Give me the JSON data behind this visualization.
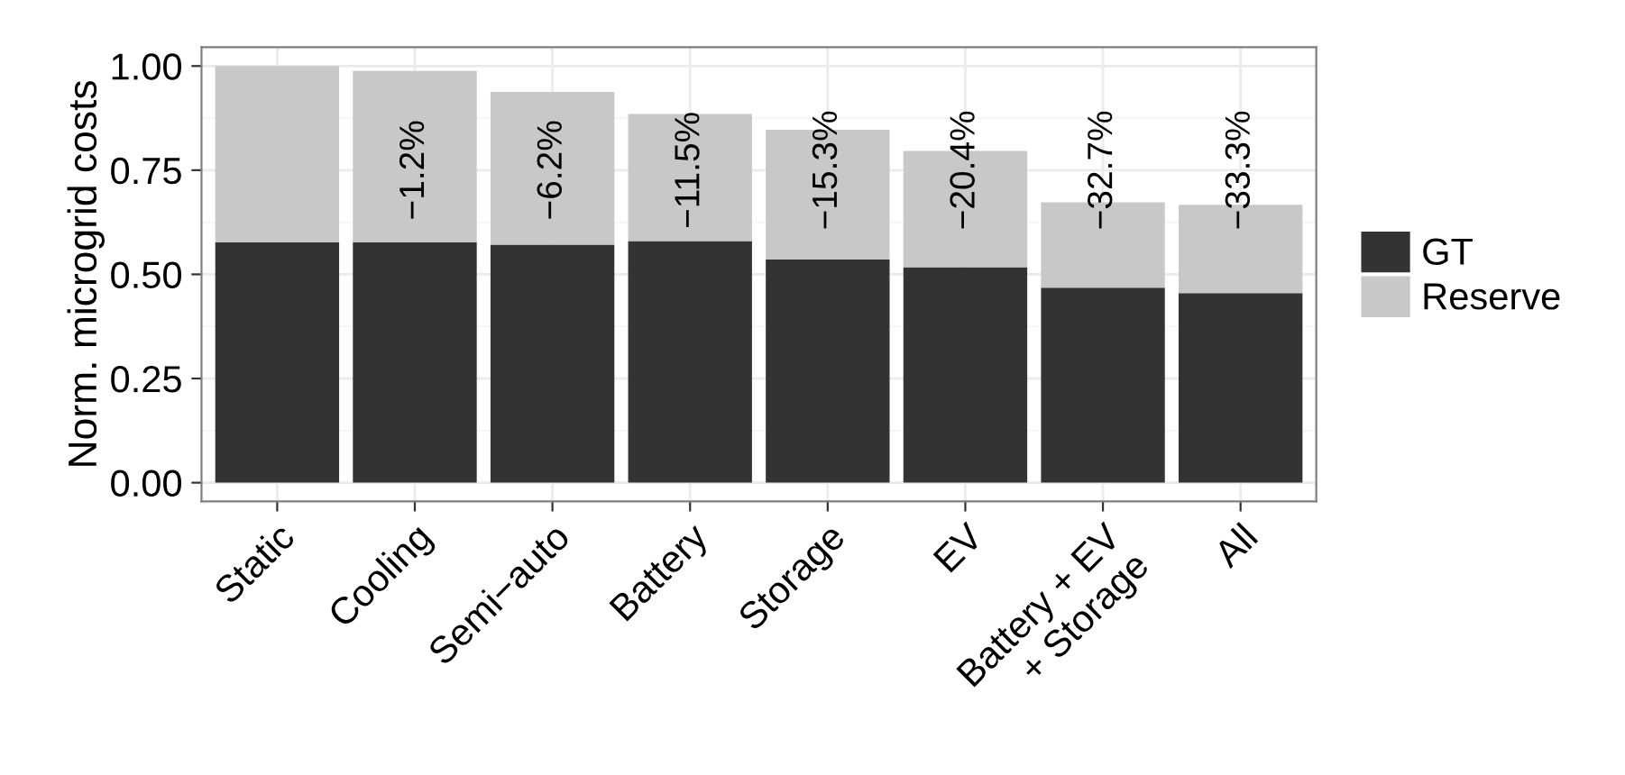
{
  "chart_data": {
    "type": "bar",
    "stacked": true,
    "ylabel": "Norm. microgrid costs",
    "categories": [
      "Static",
      "Cooling",
      "Semi−auto",
      "Battery",
      "Storage",
      "EV",
      "Battery + EV\n+ Storage",
      "All"
    ],
    "series": [
      {
        "name": "GT",
        "color": "#333333",
        "values": [
          0.577,
          0.577,
          0.571,
          0.58,
          0.536,
          0.517,
          0.468,
          0.455
        ]
      },
      {
        "name": "Reserve",
        "color": "#c8c8c8",
        "values": [
          0.423,
          0.411,
          0.367,
          0.305,
          0.311,
          0.279,
          0.205,
          0.212
        ]
      }
    ],
    "ylim": [
      -0.045,
      1.045
    ],
    "yticks": [
      {
        "value": 0,
        "label": "0.00"
      },
      {
        "value": 0.25,
        "label": "0.25"
      },
      {
        "value": 0.5,
        "label": "0.50"
      },
      {
        "value": 0.75,
        "label": "0.75"
      },
      {
        "value": 1,
        "label": "1.00"
      }
    ],
    "annotations": [
      "−1.2%",
      "−6.2%",
      "−11.5%",
      "−15.3%",
      "−20.4%",
      "−32.7%",
      "−33.3%"
    ],
    "grid": true,
    "legend": "right"
  }
}
